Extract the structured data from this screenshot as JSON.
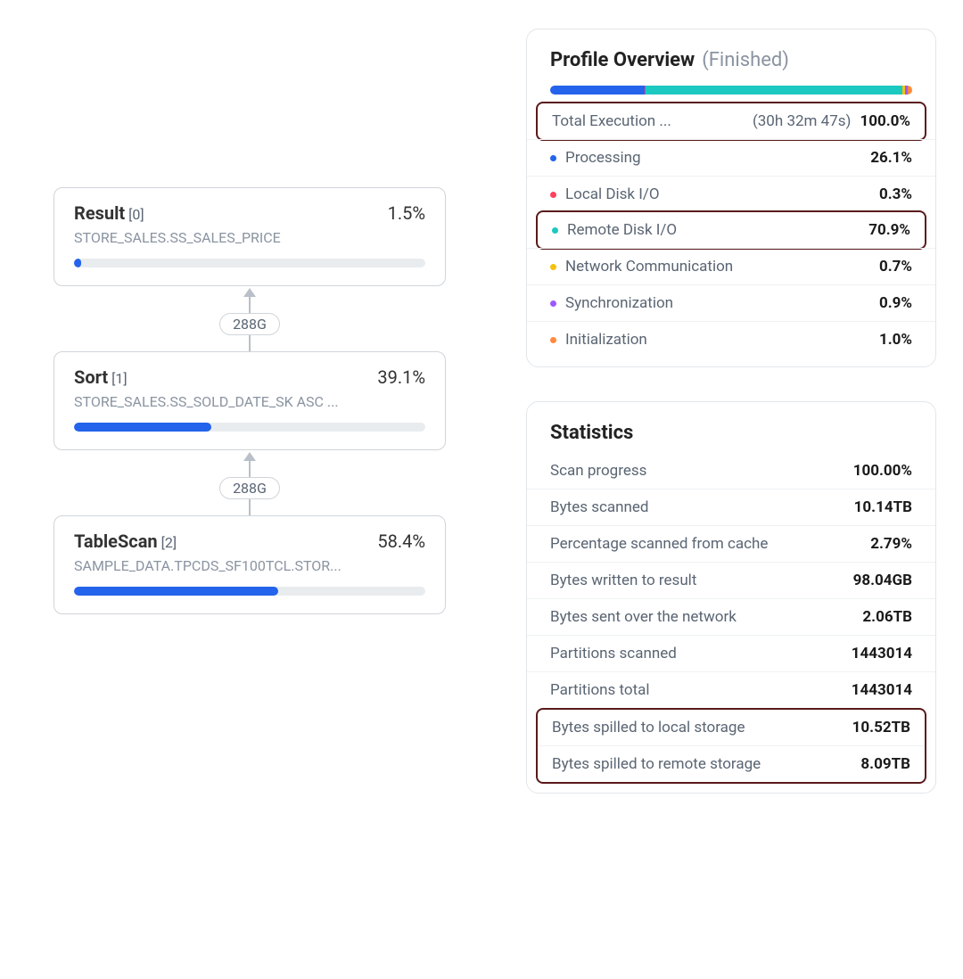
{
  "colors": {
    "accent": "#2463eb",
    "bar_track": "#e9ecef",
    "border": "#d0d4d9",
    "highlight_border": "#5a1a1a"
  },
  "tree": {
    "nodes": [
      {
        "title": "Result",
        "idx": "[0]",
        "percent": "1.5%",
        "bar_pct": 2,
        "subtitle": "STORE_SALES.SS_SALES_PRICE"
      },
      {
        "title": "Sort",
        "idx": "[1]",
        "percent": "39.1%",
        "bar_pct": 39,
        "subtitle": "STORE_SALES.SS_SOLD_DATE_SK ASC ..."
      },
      {
        "title": "TableScan",
        "idx": "[2]",
        "percent": "58.4%",
        "bar_pct": 58,
        "subtitle": "SAMPLE_DATA.TPCDS_SF100TCL.STOR..."
      }
    ],
    "edges": [
      {
        "label": "288G"
      },
      {
        "label": "288G"
      }
    ]
  },
  "profile": {
    "title": "Profile Overview",
    "status": "(Finished)",
    "segments": [
      {
        "color": "#2463eb",
        "pct": 26.1
      },
      {
        "color": "#ff4060",
        "pct": 0.3
      },
      {
        "color": "#1cc9c0",
        "pct": 70.9
      },
      {
        "color": "#f4c20d",
        "pct": 0.7
      },
      {
        "color": "#9b59ff",
        "pct": 0.9
      },
      {
        "color": "#ff8a3d",
        "pct": 1.0
      }
    ],
    "total": {
      "label": "Total Execution ...",
      "time": "(30h 32m 47s)",
      "value": "100.0%",
      "highlight": true
    },
    "rows": [
      {
        "label": "Processing",
        "value": "26.1%",
        "color": "#2463eb",
        "highlight": false
      },
      {
        "label": "Local Disk I/O",
        "value": "0.3%",
        "color": "#ff4060",
        "highlight": false
      },
      {
        "label": "Remote Disk I/O",
        "value": "70.9%",
        "color": "#1cc9c0",
        "highlight": true
      },
      {
        "label": "Network Communication",
        "value": "0.7%",
        "color": "#f4c20d",
        "highlight": false
      },
      {
        "label": "Synchronization",
        "value": "0.9%",
        "color": "#9b59ff",
        "highlight": false
      },
      {
        "label": "Initialization",
        "value": "1.0%",
        "color": "#ff8a3d",
        "highlight": false
      }
    ]
  },
  "stats": {
    "title": "Statistics",
    "rows": [
      {
        "label": "Scan progress",
        "value": "100.00%"
      },
      {
        "label": "Bytes scanned",
        "value": "10.14TB"
      },
      {
        "label": "Percentage scanned from cache",
        "value": "2.79%"
      },
      {
        "label": "Bytes written to result",
        "value": "98.04GB"
      },
      {
        "label": "Bytes sent over the network",
        "value": "2.06TB"
      },
      {
        "label": "Partitions scanned",
        "value": "1443014"
      },
      {
        "label": "Partitions total",
        "value": "1443014"
      }
    ],
    "highlight_rows": [
      {
        "label": "Bytes spilled to local storage",
        "value": "10.52TB"
      },
      {
        "label": "Bytes spilled to remote storage",
        "value": "8.09TB"
      }
    ]
  }
}
